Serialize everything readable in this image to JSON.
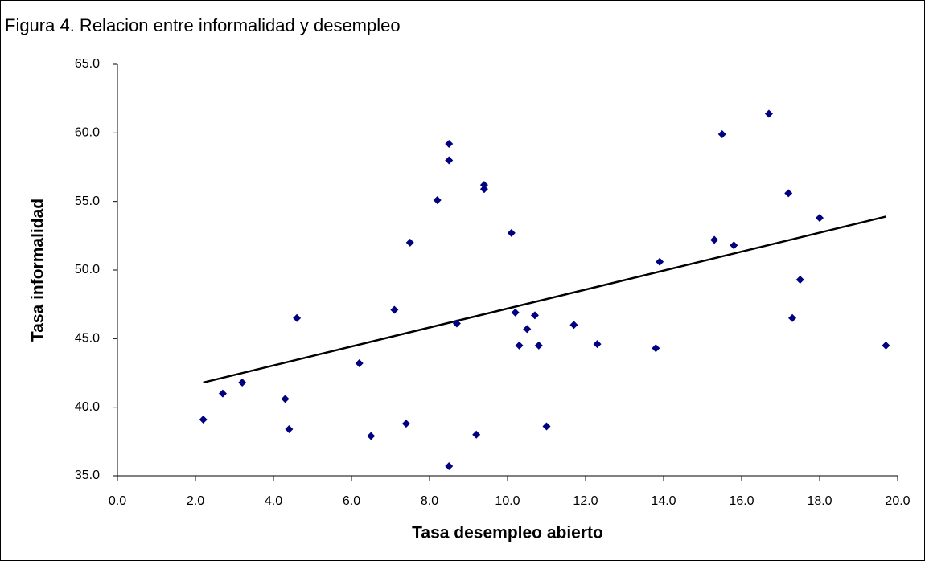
{
  "chart_data": {
    "type": "scatter",
    "title": "Figura 4. Relacion entre informalidad y desempleo",
    "x_label": "Tasa desempleo abierto",
    "y_label": "Tasa informalidad",
    "color": "#000080",
    "trend_color": "#000000",
    "x": [
      2.2,
      2.7,
      3.2,
      4.3,
      4.4,
      4.6,
      6.2,
      6.5,
      7.1,
      7.4,
      7.5,
      8.2,
      8.5,
      8.5,
      8.5,
      8.7,
      9.2,
      9.4,
      9.4,
      10.1,
      10.2,
      10.3,
      10.5,
      10.7,
      10.8,
      11.0,
      11.7,
      12.3,
      13.8,
      13.9,
      15.3,
      15.5,
      15.8,
      16.7,
      17.2,
      17.3,
      17.5,
      18.0,
      19.7
    ],
    "values": [
      39.1,
      41.0,
      41.8,
      40.6,
      38.4,
      46.5,
      43.2,
      37.9,
      47.1,
      38.8,
      52.0,
      55.1,
      59.2,
      58.0,
      35.7,
      46.1,
      38.0,
      56.2,
      55.9,
      52.7,
      46.9,
      44.5,
      45.7,
      46.7,
      44.5,
      38.6,
      46.0,
      44.6,
      44.3,
      50.6,
      52.2,
      59.9,
      51.8,
      61.4,
      55.6,
      46.5,
      49.3,
      53.8,
      44.5
    ],
    "trendline": {
      "x": [
        2.2,
        19.7
      ],
      "values": [
        41.8,
        53.9
      ]
    },
    "xlim": [
      0,
      20
    ],
    "ylim": [
      35,
      65
    ],
    "xticks": [
      {
        "value": 0,
        "label": "0.0"
      },
      {
        "value": 2,
        "label": "2.0"
      },
      {
        "value": 4,
        "label": "4.0"
      },
      {
        "value": 6,
        "label": "6.0"
      },
      {
        "value": 8,
        "label": "8.0"
      },
      {
        "value": 10,
        "label": "10.0"
      },
      {
        "value": 12,
        "label": "12.0"
      },
      {
        "value": 14,
        "label": "14.0"
      },
      {
        "value": 16,
        "label": "16.0"
      },
      {
        "value": 18,
        "label": "18.0"
      },
      {
        "value": 20,
        "label": "20.0"
      }
    ],
    "yticks": [
      {
        "value": 35,
        "label": "35.0"
      },
      {
        "value": 40,
        "label": "40.0"
      },
      {
        "value": 45,
        "label": "45.0"
      },
      {
        "value": 50,
        "label": "50.0"
      },
      {
        "value": 55,
        "label": "55.0"
      },
      {
        "value": 60,
        "label": "60.0"
      },
      {
        "value": 65,
        "label": "65.0"
      }
    ],
    "grid": false
  }
}
